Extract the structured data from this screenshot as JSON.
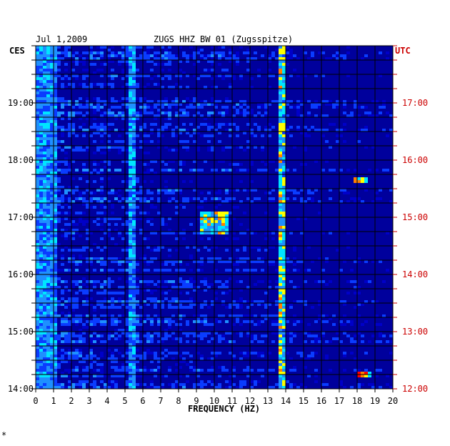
{
  "chart_data": {
    "type": "heatmap",
    "date": "Jul 1,2009",
    "title": "ZUGS HHZ BW 01 (Zugsspitze)",
    "left_timezone": "CES",
    "right_timezone": "UTC",
    "xlabel": "FREQUENCY (HZ)",
    "xlim": [
      0,
      20
    ],
    "x_ticks": [
      "0",
      "1",
      "2",
      "3",
      "4",
      "5",
      "6",
      "7",
      "8",
      "9",
      "10",
      "11",
      "12",
      "13",
      "14",
      "15",
      "16",
      "17",
      "18",
      "19",
      "20"
    ],
    "y_ticks_left": [
      "19:00",
      "18:00",
      "17:00",
      "16:00",
      "15:00",
      "14:00"
    ],
    "y_ticks_right": [
      "17:00",
      "16:00",
      "15:00",
      "14:00",
      "13:00",
      "12:00"
    ],
    "y_tick_hours_utc": [
      17,
      16,
      15,
      14,
      13,
      12
    ],
    "ylim_utc_hours": [
      12,
      18
    ],
    "colormap": [
      "#00006e",
      "#0000c8",
      "#0a3cff",
      "#1e90ff",
      "#00e5ff",
      "#ffff00",
      "#ff7f00",
      "#ff0000"
    ],
    "background_color": "#00009c",
    "grid_color": "#000000",
    "grid": true,
    "label_colors": {
      "left": "#000000",
      "right": "#cc0000"
    },
    "features": [
      {
        "description": "persistent microseism band",
        "freq_hz": [
          0,
          1.2
        ],
        "intensity": 0.55
      },
      {
        "description": "narrow spectral line",
        "freq_hz": 5.4,
        "intensity": 0.6
      },
      {
        "description": "narrow spectral line",
        "freq_hz": 13.7,
        "intensity": 0.8
      },
      {
        "description": "narrow spectral line",
        "freq_hz": 13.9,
        "intensity": 0.7
      },
      {
        "description": "tonal burst",
        "freq_hz": [
          18.0,
          18.9
        ],
        "utc_hours": [
          12.25,
          12.3
        ],
        "intensity": 1.0
      },
      {
        "description": "tonal burst",
        "freq_hz": [
          17.9,
          18.5
        ],
        "utc_hours": [
          15.65,
          15.7
        ],
        "intensity": 0.9
      },
      {
        "description": "broadband noise",
        "freq_hz": [
          9.3,
          10.8
        ],
        "utc_hours": [
          14.75,
          15.1
        ],
        "intensity": 0.8
      }
    ]
  }
}
